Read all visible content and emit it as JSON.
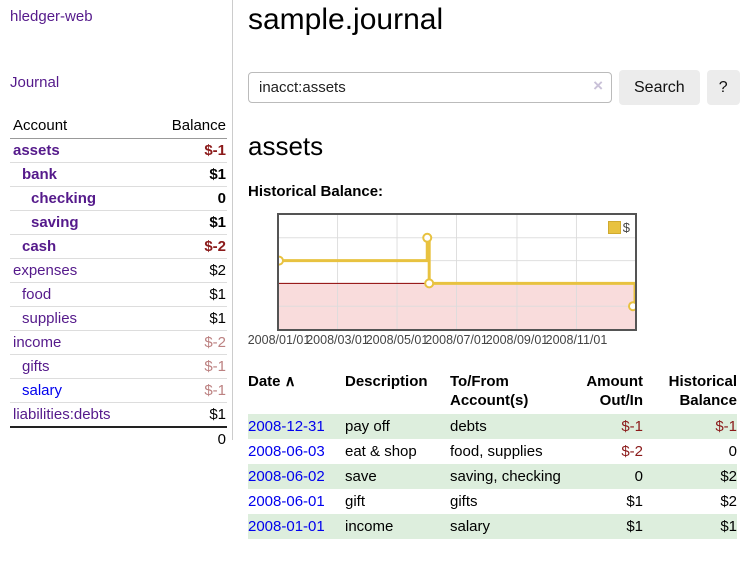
{
  "app": {
    "title": "hledger-web"
  },
  "sidebar": {
    "journal_link": "Journal",
    "accounts": {
      "headers": {
        "account": "Account",
        "balance": "Balance"
      },
      "rows": [
        {
          "account": "assets",
          "balance": "$-1",
          "indent": 0,
          "bold": true,
          "neg": "strong",
          "color": "purple"
        },
        {
          "account": "bank",
          "balance": "$1",
          "indent": 1,
          "bold": true,
          "neg": null,
          "color": "purple"
        },
        {
          "account": "checking",
          "balance": "0",
          "indent": 2,
          "bold": true,
          "neg": null,
          "color": "purple"
        },
        {
          "account": "saving",
          "balance": "$1",
          "indent": 2,
          "bold": true,
          "neg": null,
          "color": "purple"
        },
        {
          "account": "cash",
          "balance": "$-2",
          "indent": 1,
          "bold": true,
          "neg": "strong",
          "color": "purple"
        },
        {
          "account": "expenses",
          "balance": "$2",
          "indent": 0,
          "bold": false,
          "neg": null,
          "color": "purple"
        },
        {
          "account": "food",
          "balance": "$1",
          "indent": 1,
          "bold": false,
          "neg": null,
          "color": "purple"
        },
        {
          "account": "supplies",
          "balance": "$1",
          "indent": 1,
          "bold": false,
          "neg": null,
          "color": "purple"
        },
        {
          "account": "income",
          "balance": "$-2",
          "indent": 0,
          "bold": false,
          "neg": "faded",
          "color": "purple"
        },
        {
          "account": "gifts",
          "balance": "$-1",
          "indent": 1,
          "bold": false,
          "neg": "faded",
          "color": "purple"
        },
        {
          "account": "salary",
          "balance": "$-1",
          "indent": 1,
          "bold": false,
          "neg": "faded",
          "color": "blue"
        },
        {
          "account": "liabilities:debts",
          "balance": "$1",
          "indent": 0,
          "bold": false,
          "neg": null,
          "color": "purple"
        }
      ],
      "total": "0"
    }
  },
  "main": {
    "title": "sample.journal",
    "search": {
      "value": "inacct:assets",
      "clear_icon": "×",
      "button": "Search",
      "help_button": "?"
    },
    "account_heading": "assets",
    "chart_label": "Historical Balance:"
  },
  "register": {
    "sort_icon": "∧",
    "columns": [
      {
        "lines": [
          "Date"
        ],
        "sortable": true,
        "align": "left"
      },
      {
        "lines": [
          "Description"
        ],
        "align": "left"
      },
      {
        "lines": [
          "To/From",
          "Account(s)"
        ],
        "align": "left"
      },
      {
        "lines": [
          "Amount",
          "Out/In"
        ],
        "align": "right"
      },
      {
        "lines": [
          "Historical",
          "Balance"
        ],
        "align": "right"
      }
    ],
    "rows": [
      {
        "date": "2008-12-31",
        "description": "pay off",
        "accounts": "debts",
        "amount": "$-1",
        "balance": "$-1"
      },
      {
        "date": "2008-06-03",
        "description": "eat & shop",
        "accounts": "food, supplies",
        "amount": "$-2",
        "balance": "0"
      },
      {
        "date": "2008-06-02",
        "description": "save",
        "accounts": "saving, checking",
        "amount": "0",
        "balance": "$2"
      },
      {
        "date": "2008-06-01",
        "description": "gift",
        "accounts": "gifts",
        "amount": "$1",
        "balance": "$2"
      },
      {
        "date": "2008-01-01",
        "description": "income",
        "accounts": "salary",
        "amount": "$1",
        "balance": "$1"
      }
    ]
  },
  "chart_data": {
    "type": "line",
    "title": "Historical Balance:",
    "step": true,
    "series": [
      {
        "name": "$",
        "points": [
          [
            "2008-01-01",
            1
          ],
          [
            "2008-06-01",
            2
          ],
          [
            "2008-06-03",
            0
          ],
          [
            "2008-12-31",
            -1
          ]
        ]
      }
    ],
    "xlim": [
      "2008-01-01",
      "2008-12-31"
    ],
    "ylim": [
      -2.0,
      3.0
    ],
    "yticks": [
      3.0,
      2.0,
      1.0,
      0.0,
      -1.0,
      -2.0
    ],
    "xticks": [
      "2008/01/01",
      "2008/03/01",
      "2008/05/01",
      "2008/07/01",
      "2008/09/01",
      "2008/11/01"
    ],
    "legend_position": "top-right",
    "grid": true,
    "colors": {
      "line": "#e8c240",
      "marker_fill": "#ffffff",
      "negative_region": "#f9dcdc",
      "zero_line": "#8b0000",
      "grid_line": "#dcdcdc",
      "border": "#545454"
    }
  }
}
